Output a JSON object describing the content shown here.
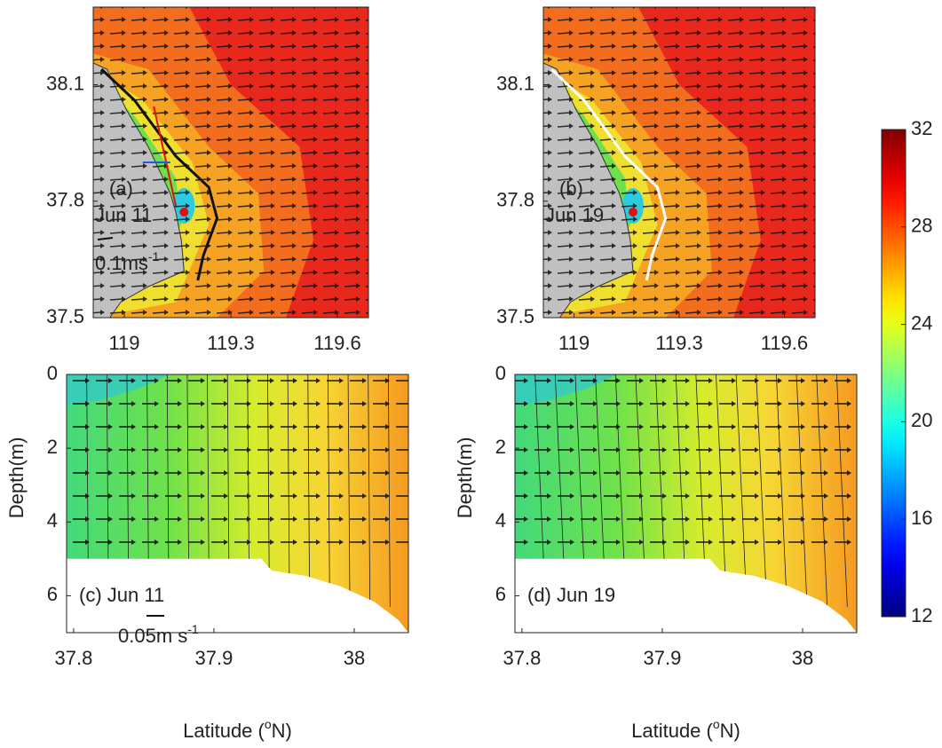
{
  "chart_data": [
    {
      "type": "map",
      "label": "(a)",
      "date": "Jun 11",
      "scale_label": [
        "0.1ms",
        "-1"
      ],
      "xlim": [
        118.9125,
        119.6875
      ],
      "xticks": [
        119,
        119.3,
        119.6
      ],
      "ylim": [
        37.5,
        38.3
      ],
      "yticks": [
        37.5,
        37.8,
        38.1
      ]
    },
    {
      "type": "map",
      "label": "(b)",
      "date": "Jun 19",
      "xlim": [
        118.9125,
        119.6875
      ],
      "xticks": [
        119,
        119.3,
        119.6
      ],
      "ylim": [
        37.5,
        38.3
      ],
      "yticks": [
        37.5,
        37.8,
        38.1
      ]
    },
    {
      "type": "section",
      "label": "(c) Jun 11",
      "scale_label": [
        "0.05m s",
        "-1"
      ],
      "ylabel": "Depth(m)",
      "xlabel": [
        "Latitude (",
        "o",
        "N)"
      ],
      "xlim": [
        37.795,
        38.0386
      ],
      "xticks": [
        37.8,
        37.9,
        38
      ],
      "ylim": [
        0,
        7
      ],
      "y_reversed": true,
      "yticks": [
        0,
        2,
        4,
        6
      ]
    },
    {
      "type": "section",
      "label": "(d) Jun 19",
      "ylabel": "Depth(m)",
      "xlabel": [
        "Latitude (",
        "o",
        "N)"
      ],
      "xlim": [
        37.795,
        38.0386
      ],
      "xticks": [
        37.8,
        37.9,
        38
      ],
      "ylim": [
        0,
        7
      ],
      "y_reversed": true,
      "yticks": [
        0,
        2,
        4,
        6
      ]
    },
    {
      "type": "colorbar",
      "colormap": "jet",
      "clim": [
        12,
        32
      ],
      "ticks": [
        12,
        16,
        20,
        24,
        28,
        32
      ]
    }
  ]
}
